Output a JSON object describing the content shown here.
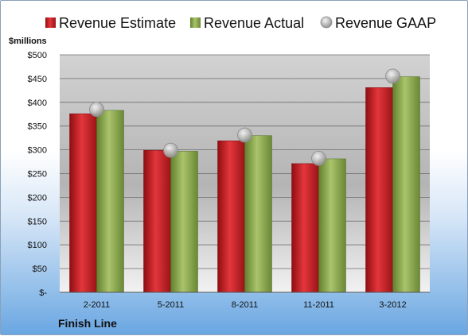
{
  "chart_data": {
    "type": "bar",
    "title": "",
    "ylabel": "$millions",
    "xlabel": "",
    "company": "Finish Line",
    "categories": [
      "2-2011",
      "5-2011",
      "8-2011",
      "11-2011",
      "3-2012"
    ],
    "series": [
      {
        "name": "Revenue Estimate",
        "type": "bar",
        "color": "#c81e24",
        "values": [
          376,
          299,
          319,
          271,
          431
        ]
      },
      {
        "name": "Revenue Actual",
        "type": "bar",
        "color": "#8eab4f",
        "values": [
          383,
          297,
          330,
          281,
          454
        ]
      },
      {
        "name": "Revenue GAAP",
        "type": "marker",
        "color": "#a8a8a8",
        "values": [
          385,
          299,
          331,
          282,
          455
        ]
      }
    ],
    "ylim": [
      0,
      500
    ],
    "yticks": [
      0,
      50,
      100,
      150,
      200,
      250,
      300,
      350,
      400,
      450,
      500
    ],
    "ytick_labels": [
      "$-",
      "$50",
      "$100",
      "$150",
      "$200",
      "$250",
      "$300",
      "$350",
      "$400",
      "$450",
      "$500"
    ],
    "grid": true,
    "legend_position": "top"
  }
}
